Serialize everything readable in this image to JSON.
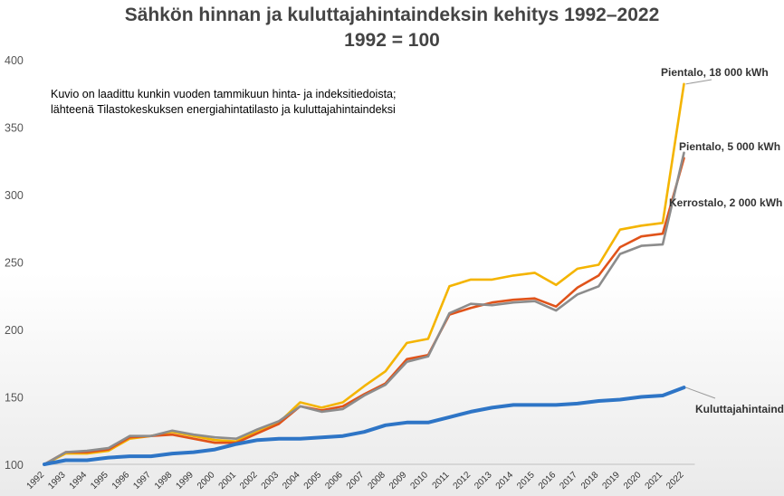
{
  "chart_data": {
    "type": "line",
    "title": "Sähkön hinnan ja kuluttajahintaindeksin kehitys  1992–2022",
    "subtitle": "1992 = 100",
    "note_line1": "Kuvio on laadittu kunkin vuoden tammikuun hinta- ja indeksitiedoista;",
    "note_line2": "lähteenä Tilastokeskuksen energiahintatilasto ja kuluttajahintaindeksi",
    "xlabel": "",
    "ylabel": "",
    "ylim": [
      100,
      400
    ],
    "yticks": [
      "100",
      "150",
      "200",
      "250",
      "300",
      "350",
      "400"
    ],
    "categories": [
      "1992",
      "1993",
      "1994",
      "1995",
      "1996",
      "1997",
      "1998",
      "1999",
      "2000",
      "2001",
      "2002",
      "2003",
      "2004",
      "2005",
      "2006",
      "2007",
      "2008",
      "2009",
      "2010",
      "2011",
      "2012",
      "2013",
      "2014",
      "2015",
      "2016",
      "2017",
      "2018",
      "2019",
      "2020",
      "2021",
      "2022"
    ],
    "series": [
      {
        "name": "Pientalo, 18 000 kWh",
        "color": "#f4b400",
        "values": [
          100,
          108,
          108,
          110,
          119,
          121,
          124,
          121,
          118,
          117,
          125,
          131,
          146,
          142,
          146,
          158,
          169,
          190,
          193,
          232,
          237,
          237,
          240,
          242,
          233,
          245,
          248,
          274,
          277,
          279,
          382
        ]
      },
      {
        "name": "Pientalo, 5 000 kWh",
        "color": "#e0531a",
        "values": [
          100,
          109,
          109,
          111,
          120,
          121,
          122,
          119,
          116,
          116,
          123,
          130,
          143,
          140,
          143,
          152,
          160,
          178,
          181,
          211,
          216,
          220,
          222,
          223,
          217,
          231,
          240,
          261,
          269,
          271,
          327
        ]
      },
      {
        "name": "Kerrostalo, 2 000 kWh",
        "color": "#8c8c8c",
        "values": [
          100,
          109,
          110,
          112,
          121,
          121,
          125,
          122,
          120,
          119,
          126,
          132,
          143,
          139,
          141,
          151,
          159,
          176,
          180,
          212,
          219,
          218,
          220,
          221,
          214,
          226,
          232,
          256,
          262,
          263,
          331
        ]
      },
      {
        "name": "Kuluttajahintaindeksi",
        "color": "#2e75c6",
        "values": [
          100,
          103,
          103,
          105,
          106,
          106,
          108,
          109,
          111,
          115,
          118,
          119,
          119,
          120,
          121,
          124,
          129,
          131,
          131,
          135,
          139,
          142,
          144,
          144,
          144,
          145,
          147,
          148,
          150,
          151,
          157
        ]
      }
    ]
  }
}
